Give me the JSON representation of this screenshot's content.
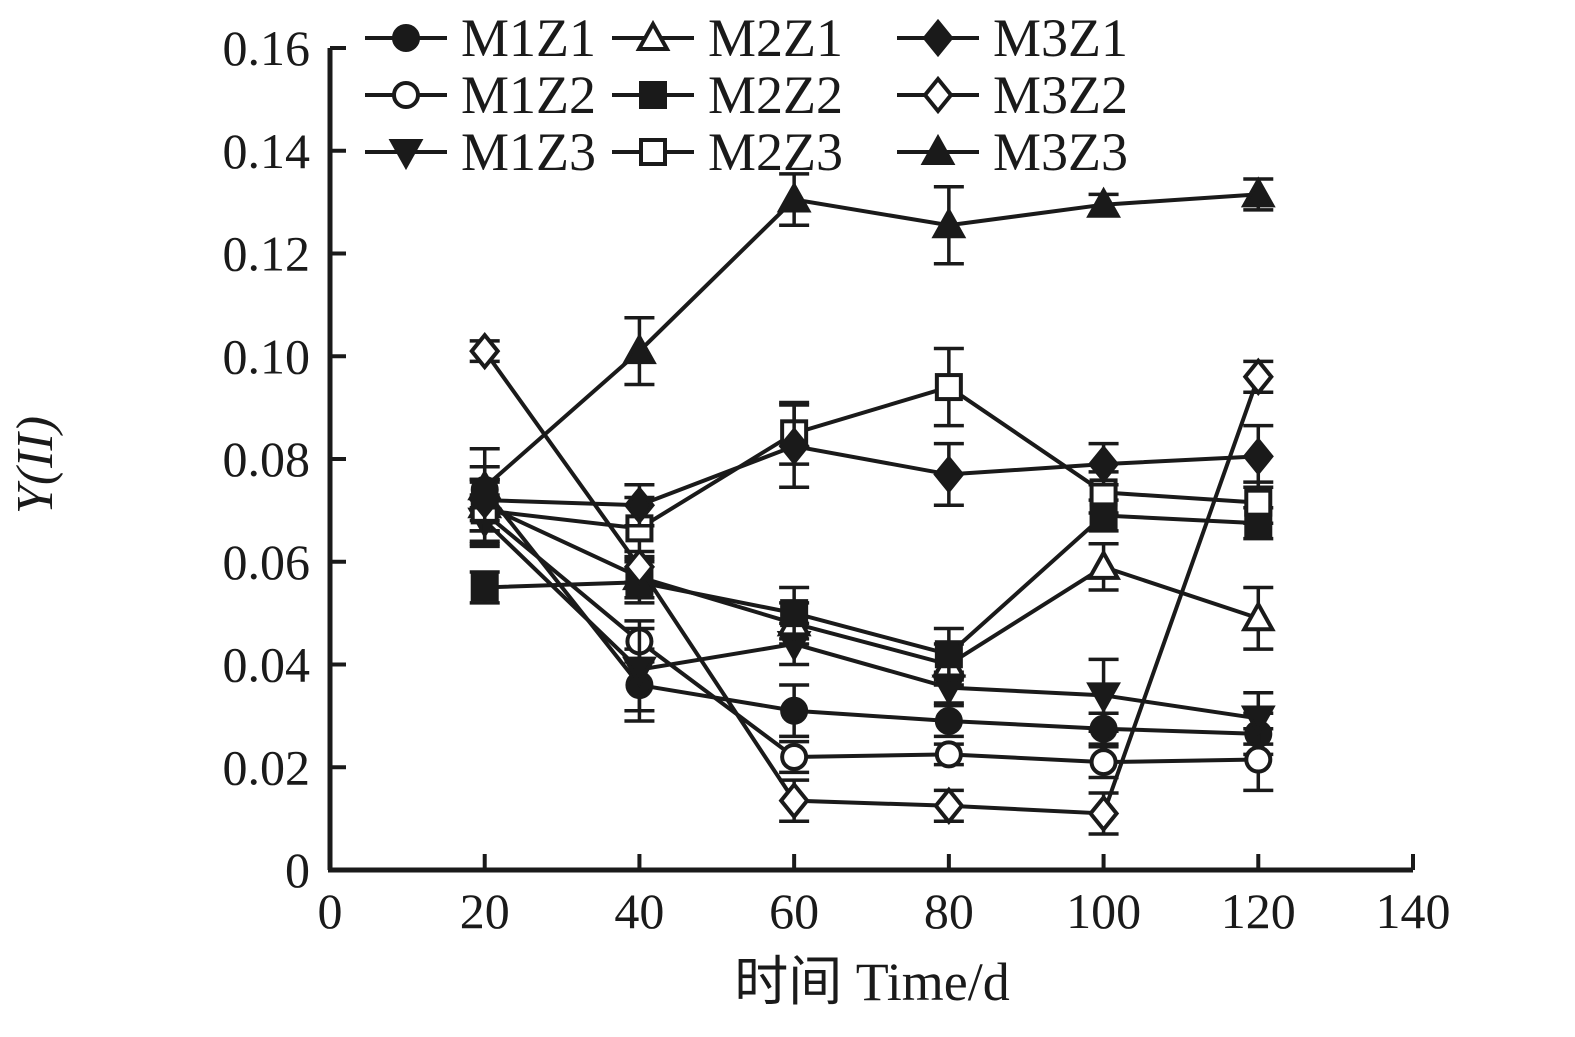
{
  "chart_data": {
    "type": "line",
    "title": "",
    "xlabel": "时间 Time/d",
    "ylabel": "Y(II)",
    "xlim": [
      0,
      140
    ],
    "ylim": [
      0,
      0.16
    ],
    "x_ticks": [
      0,
      20,
      40,
      60,
      80,
      100,
      120,
      140
    ],
    "x_tick_labels": [
      "0",
      "20",
      "40",
      "60",
      "80",
      "100",
      "120",
      "140"
    ],
    "y_ticks": [
      0,
      0.02,
      0.04,
      0.06,
      0.08,
      0.1,
      0.12,
      0.14,
      0.16
    ],
    "y_tick_labels": [
      "0",
      "0.02",
      "0.04",
      "0.06",
      "0.08",
      "0.10",
      "0.12",
      "0.14",
      "0.16"
    ],
    "grid": false,
    "legend_position": "top-inside",
    "line_color": "#1a1a1a",
    "background_color": "#ffffff",
    "x": [
      20,
      40,
      60,
      80,
      100,
      120
    ],
    "series": [
      {
        "name": "M1Z1",
        "marker": "circle-filled",
        "values": [
          0.074,
          0.036,
          0.031,
          0.029,
          0.0275,
          0.0265
        ],
        "errors": [
          0.008,
          0.007,
          0.005,
          0.003,
          0.003,
          0.004
        ]
      },
      {
        "name": "M1Z2",
        "marker": "circle-open",
        "values": [
          0.0695,
          0.0445,
          0.022,
          0.0225,
          0.021,
          0.0215
        ],
        "errors": [
          0.006,
          0.004,
          0.003,
          0.002,
          0.003,
          0.006
        ]
      },
      {
        "name": "M1Z3",
        "marker": "triangle-down-filled",
        "values": [
          0.068,
          0.039,
          0.044,
          0.0355,
          0.034,
          0.0295
        ],
        "errors": [
          0.005,
          0.008,
          0.004,
          0.003,
          0.007,
          0.005
        ]
      },
      {
        "name": "M2Z1",
        "marker": "triangle-up-open",
        "values": [
          0.071,
          0.057,
          0.048,
          0.04,
          0.059,
          0.049
        ],
        "errors": [
          0.005,
          0.004,
          0.004,
          0.004,
          0.0045,
          0.006
        ]
      },
      {
        "name": "M2Z2",
        "marker": "square-filled",
        "values": [
          0.055,
          0.056,
          0.05,
          0.042,
          0.069,
          0.0675
        ],
        "errors": [
          0.003,
          0.004,
          0.005,
          0.005,
          0.003,
          0.003
        ]
      },
      {
        "name": "M2Z3",
        "marker": "square-open",
        "values": [
          0.07,
          0.0665,
          0.085,
          0.094,
          0.0735,
          0.0715
        ],
        "errors": [
          0.006,
          0.006,
          0.006,
          0.0075,
          0.004,
          0.004
        ]
      },
      {
        "name": "M3Z1",
        "marker": "diamond-filled",
        "values": [
          0.072,
          0.071,
          0.0825,
          0.077,
          0.079,
          0.0805
        ],
        "errors": [
          0.004,
          0.004,
          0.008,
          0.006,
          0.004,
          0.006
        ]
      },
      {
        "name": "M3Z2",
        "marker": "diamond-open",
        "values": [
          0.101,
          0.059,
          0.0135,
          0.0125,
          0.011,
          0.096
        ],
        "errors": [
          0.002,
          0.003,
          0.004,
          0.003,
          0.004,
          0.003
        ]
      },
      {
        "name": "M3Z3",
        "marker": "triangle-up-filled",
        "values": [
          0.0745,
          0.101,
          0.1305,
          0.1255,
          0.1295,
          0.1315
        ],
        "errors": [
          0.004,
          0.0065,
          0.005,
          0.0075,
          0.002,
          0.003
        ]
      }
    ]
  }
}
